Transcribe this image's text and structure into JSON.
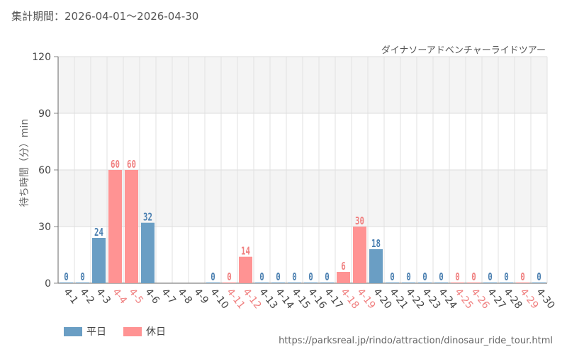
{
  "header": {
    "period": "集計期間：2026-04-01～2026-04-30",
    "attraction": "ダイナソーアドベンチャーライドツアー"
  },
  "legend": {
    "weekday": "平日",
    "holiday": "休日"
  },
  "source_url": "https://parksreal.jp/rindo/attraction/dinosaur_ride_tour.html",
  "colors": {
    "weekday": "#6a9ec4",
    "holiday": "#ff9393",
    "weekday_text": "#4a7fb0",
    "holiday_text": "#f08080"
  },
  "chart_data": {
    "type": "bar",
    "ylabel": "待ち時間（分）min",
    "ylim": [
      0,
      120
    ],
    "yticks": [
      0,
      30,
      60,
      90,
      120
    ],
    "grid": true,
    "legend_position": "bottom-left",
    "categories": [
      "4-1",
      "4-2",
      "4-3",
      "4-4",
      "4-5",
      "4-6",
      "4-7",
      "4-8",
      "4-9",
      "4-10",
      "4-11",
      "4-12",
      "4-13",
      "4-14",
      "4-15",
      "4-16",
      "4-17",
      "4-18",
      "4-19",
      "4-20",
      "4-21",
      "4-22",
      "4-23",
      "4-24",
      "4-25",
      "4-26",
      "4-27",
      "4-28",
      "4-29",
      "4-30"
    ],
    "values": [
      0,
      0,
      24,
      60,
      60,
      32,
      null,
      null,
      null,
      0,
      0,
      14,
      0,
      0,
      0,
      0,
      0,
      6,
      30,
      18,
      0,
      0,
      0,
      0,
      0,
      0,
      0,
      0,
      0,
      0
    ],
    "day_type": [
      "weekday",
      "weekday",
      "weekday",
      "holiday",
      "holiday",
      "weekday",
      "weekday",
      "weekday",
      "weekday",
      "weekday",
      "holiday",
      "holiday",
      "weekday",
      "weekday",
      "weekday",
      "weekday",
      "weekday",
      "holiday",
      "holiday",
      "weekday",
      "weekday",
      "weekday",
      "weekday",
      "weekday",
      "holiday",
      "holiday",
      "weekday",
      "weekday",
      "holiday",
      "weekday"
    ]
  }
}
